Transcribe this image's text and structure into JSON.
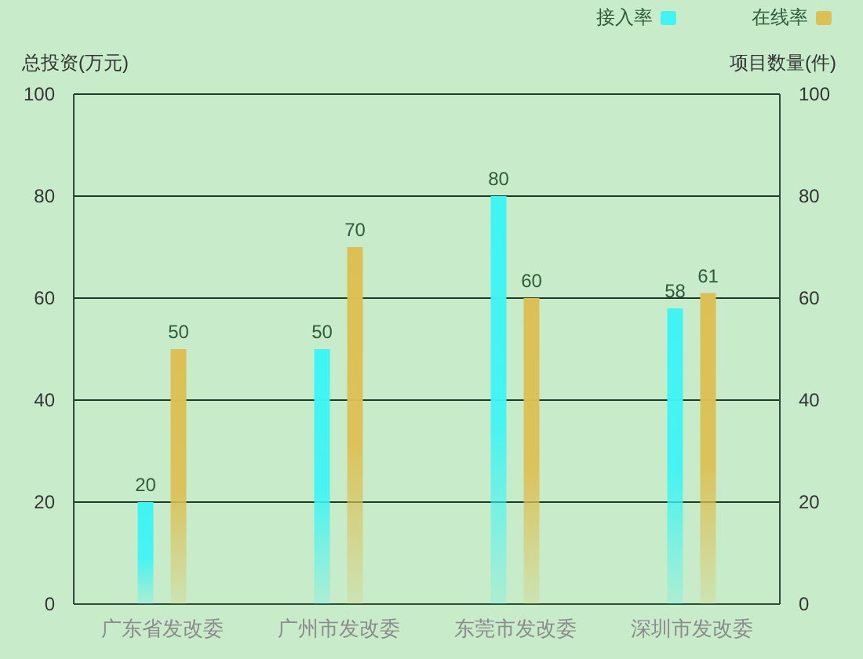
{
  "chart_data": {
    "type": "bar",
    "categories": [
      "广东省发改委",
      "广州市发改委",
      "东莞市发改委",
      "深圳市发改委"
    ],
    "ylabel": "总投资(万元)",
    "y2label": "项目数量(件)",
    "series": [
      {
        "name": "接入率",
        "color": "#40f4f4",
        "values": [
          20,
          50,
          80,
          58
        ]
      },
      {
        "name": "在线率",
        "color": "#dcc055",
        "values": [
          50,
          70,
          60,
          61
        ]
      }
    ],
    "ylim": [
      0,
      100
    ],
    "yticks": [
      0,
      20,
      40,
      60,
      80,
      100
    ],
    "y2lim": [
      0,
      100
    ],
    "y2ticks": [
      0,
      20,
      40,
      60,
      80,
      100
    ],
    "grid": "y",
    "legend": "top right",
    "data_labels": true
  }
}
